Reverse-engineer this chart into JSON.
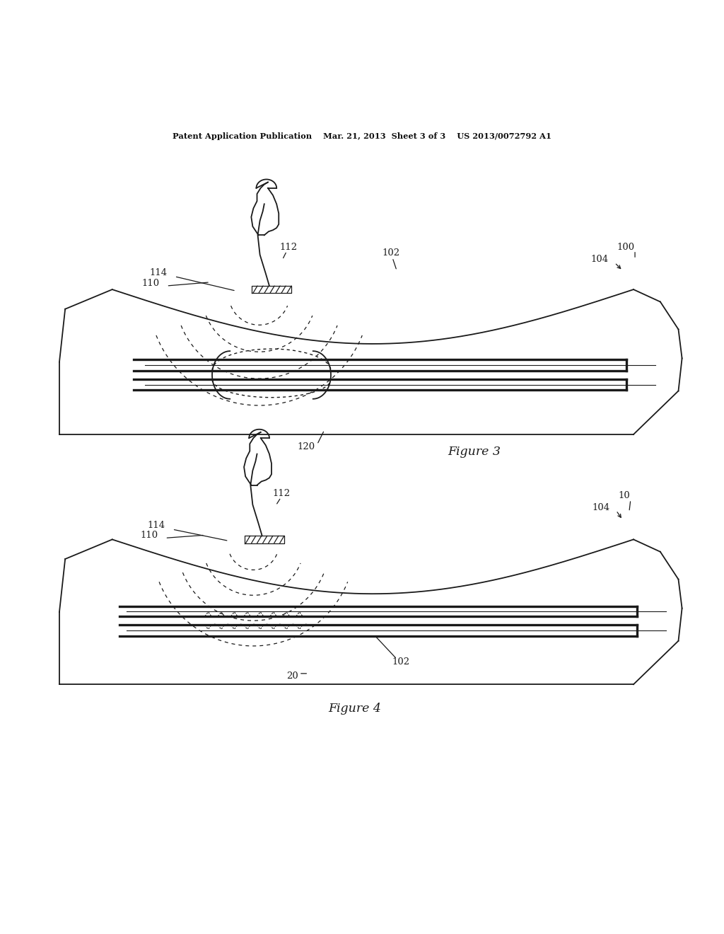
{
  "bg_color": "#ffffff",
  "line_color": "#1a1a1a",
  "header": "Patent Application Publication    Mar. 21, 2013  Sheet 3 of 3    US 2013/0072792 A1",
  "fig3_title": "Figure 3",
  "fig4_title": "Figure 4"
}
